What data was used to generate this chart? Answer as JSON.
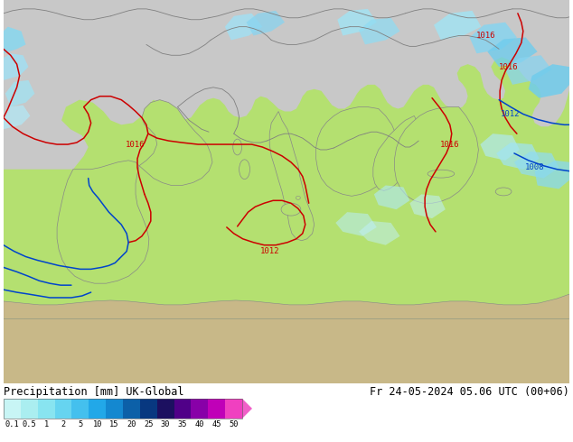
{
  "title_left": "Precipitation [mm] UK-Global",
  "title_right": "Fr 24-05-2024 05.06 UTC (00+06)",
  "colorbar_labels": [
    "0.1",
    "0.5",
    "1",
    "2",
    "5",
    "10",
    "15",
    "20",
    "25",
    "30",
    "35",
    "40",
    "45",
    "50"
  ],
  "colorbar_colors": [
    "#c8f5f5",
    "#aaeef0",
    "#88e4f0",
    "#66d4f0",
    "#44c0ee",
    "#22a8e8",
    "#1488d0",
    "#0c60a8",
    "#083880",
    "#1c1060",
    "#500088",
    "#8800a8",
    "#c000b8",
    "#f040c0"
  ],
  "land_color": "#b4e070",
  "sea_color": "#c8c8c8",
  "desert_color": "#c8b888",
  "precip_light": "#a0ddf0",
  "precip_med": "#66c4e8",
  "fig_width": 6.34,
  "fig_height": 4.9,
  "dpi": 100
}
